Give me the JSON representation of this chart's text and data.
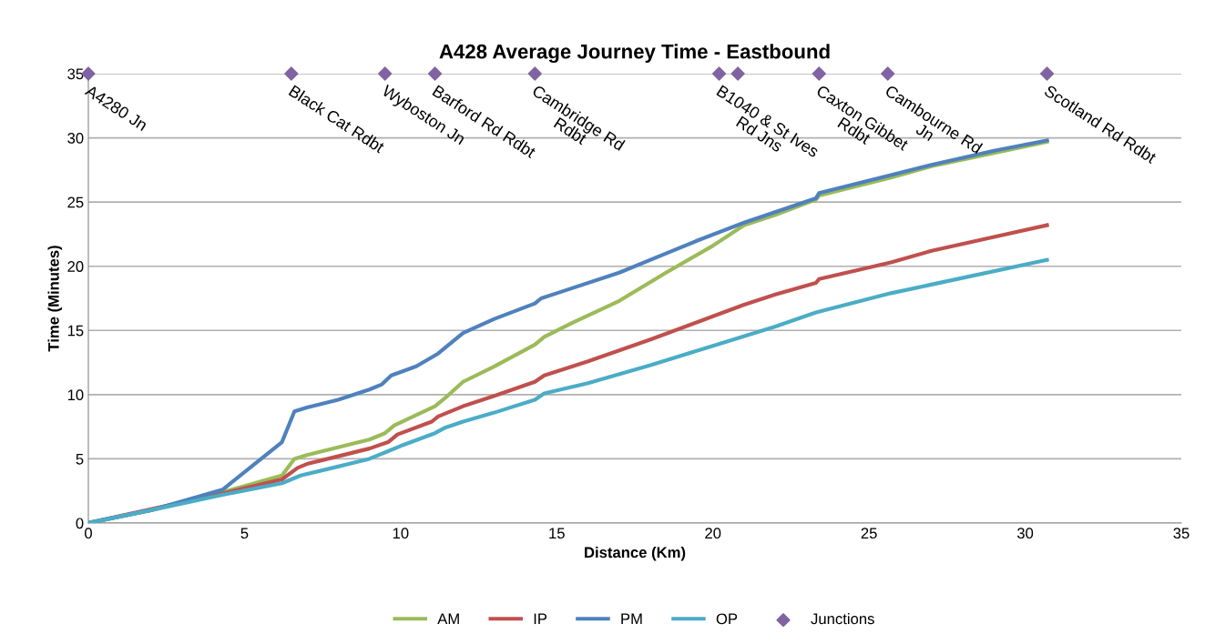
{
  "chart_data": {
    "type": "line",
    "title": "A428 Average Journey Time - Eastbound",
    "xlabel": "Distance (Km)",
    "ylabel": "Time (Minutes)",
    "xlim": [
      0,
      35
    ],
    "xticks": [
      0,
      5,
      10,
      15,
      20,
      25,
      30,
      35
    ],
    "ylim": [
      0,
      35
    ],
    "yticks": [
      0,
      5,
      10,
      15,
      20,
      25,
      30,
      35
    ],
    "grid": "y",
    "legend": "bottom",
    "line_style": "solid",
    "series": [
      {
        "name": "AM",
        "color": "#9bbb59",
        "marker": "none",
        "x": [
          0,
          2,
          4.3,
          6.2,
          6.6,
          7,
          8,
          9,
          9.5,
          9.8,
          11.1,
          11.5,
          12,
          13,
          14.3,
          14.6,
          15.5,
          17,
          18.5,
          20,
          21,
          22,
          23.3,
          23.4,
          25.7,
          27,
          30.7
        ],
        "values": [
          0,
          1,
          2.4,
          3.7,
          5.0,
          5.3,
          5.9,
          6.5,
          7.0,
          7.6,
          9.1,
          9.9,
          11.0,
          12.2,
          13.9,
          14.5,
          15.6,
          17.3,
          19.5,
          21.6,
          23.2,
          24,
          25.2,
          25.5,
          26.9,
          27.8,
          29.7
        ]
      },
      {
        "name": "IP",
        "color": "#c0504d",
        "marker": "none",
        "x": [
          0,
          4.3,
          6.2,
          6.7,
          7,
          8,
          9,
          9.6,
          9.9,
          11,
          11.2,
          12,
          13,
          14.3,
          14.6,
          16,
          18,
          20,
          21,
          22,
          23.3,
          23.4,
          25.7,
          27,
          30.7
        ],
        "values": [
          0,
          2.3,
          3.4,
          4.3,
          4.6,
          5.2,
          5.8,
          6.3,
          6.9,
          7.9,
          8.3,
          9.1,
          9.9,
          11.0,
          11.5,
          12.6,
          14.3,
          16.1,
          17,
          17.8,
          18.7,
          19.0,
          20.3,
          21.2,
          23.2
        ]
      },
      {
        "name": "PM",
        "color": "#4f81bd",
        "marker": "none",
        "x": [
          0,
          2,
          4.3,
          6.2,
          6.6,
          7,
          8,
          9,
          9.4,
          9.7,
          10.5,
          11.2,
          12,
          13,
          14.3,
          14.5,
          15,
          17,
          18.5,
          19.5,
          21,
          23.3,
          23.4,
          25.7,
          27,
          29,
          30.7
        ],
        "values": [
          0,
          1.0,
          2.6,
          6.3,
          8.7,
          9.0,
          9.6,
          10.4,
          10.8,
          11.5,
          12.2,
          13.2,
          14.8,
          15.9,
          17.1,
          17.5,
          17.9,
          19.5,
          21,
          22,
          23.4,
          25.3,
          25.7,
          27.1,
          27.9,
          29,
          29.8
        ]
      },
      {
        "name": "OP",
        "color": "#4bacc6",
        "marker": "none",
        "x": [
          0,
          2,
          4.3,
          6.2,
          6.8,
          8,
          9,
          9.6,
          10,
          11.1,
          11.4,
          12,
          13,
          14.3,
          14.6,
          16,
          18,
          20,
          22,
          23.3,
          25.7,
          30.7
        ],
        "values": [
          0,
          1,
          2.2,
          3.1,
          3.7,
          4.4,
          5,
          5.6,
          6.0,
          7.0,
          7.4,
          7.9,
          8.6,
          9.6,
          10.1,
          10.9,
          12.3,
          13.8,
          15.3,
          16.4,
          17.9,
          20.5
        ]
      },
      {
        "name": "Junctions",
        "color": "#8064a2",
        "type": "scatter",
        "marker": "diamond",
        "x": [
          0,
          6.5,
          9.5,
          11.1,
          14.3,
          20.2,
          20.8,
          23.4,
          25.6,
          30.7
        ],
        "values": [
          35,
          35,
          35,
          35,
          35,
          35,
          35,
          35,
          35,
          35
        ]
      }
    ],
    "annotations": [
      {
        "text": "A4280 Jn",
        "x": 0,
        "y": 35
      },
      {
        "text": "Black Cat Rdbt",
        "x": 6.5,
        "y": 35
      },
      {
        "text": "Wyboston Jn",
        "x": 9.5,
        "y": 35
      },
      {
        "text": "Barford Rd Rdbt",
        "x": 11.1,
        "y": 35
      },
      {
        "text": "Cambridge Rd\nRdbt",
        "x": 14.3,
        "y": 35
      },
      {
        "text": "B1040 & St Ives\nRd Jns",
        "x": 20.2,
        "y": 35
      },
      {
        "text": "Caxton Gibbet\nRdbt",
        "x": 23.4,
        "y": 35
      },
      {
        "text": "Cambourne Rd\nJn",
        "x": 25.6,
        "y": 35
      },
      {
        "text": "Scotland Rd Rdbt",
        "x": 30.7,
        "y": 35
      }
    ]
  }
}
